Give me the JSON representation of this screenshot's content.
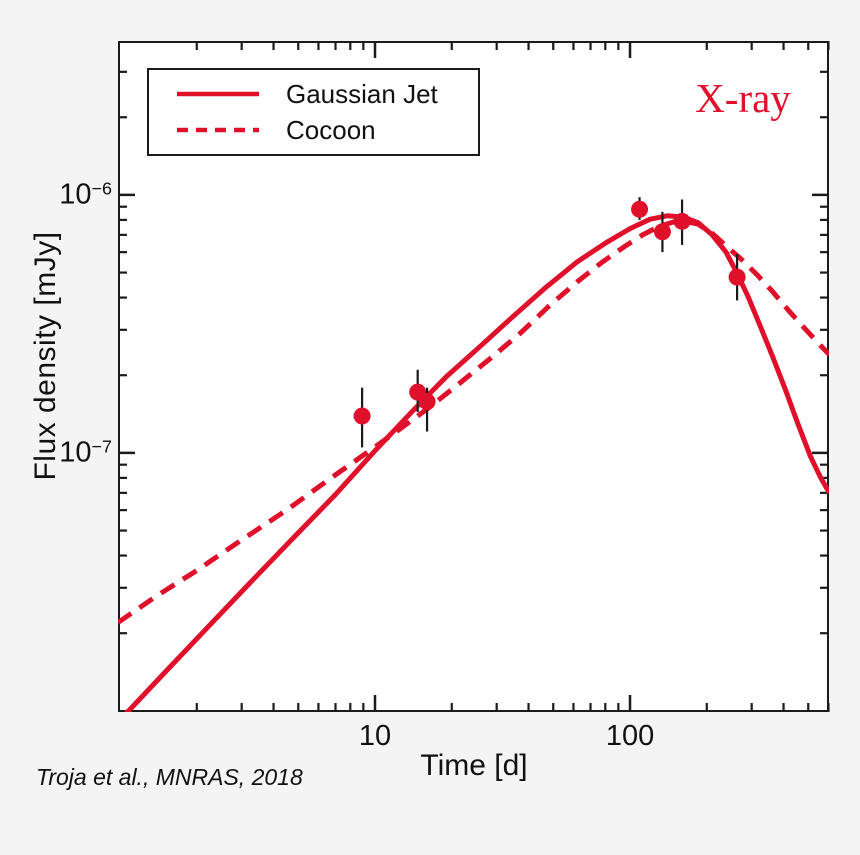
{
  "colors": {
    "accent": "#e0102a",
    "frame": "#1b1b1b",
    "text": "#111111",
    "background": "#f5f4f5",
    "plot_background": "#ffffff"
  },
  "legend": {
    "items": [
      {
        "label": "Gaussian Jet",
        "style": "solid"
      },
      {
        "label": "Cocoon",
        "style": "dashed"
      }
    ]
  },
  "annotation": {
    "label": "X-ray"
  },
  "attribution": {
    "text": "Troja et al., MNRAS, 2018"
  },
  "chart_data": {
    "type": "line",
    "title": "",
    "xlabel": "Time [d]",
    "ylabel": "Flux density [mJy]",
    "x_scale": "log",
    "y_scale": "log",
    "xlim": [
      0.982,
      603
    ],
    "ylim": [
      9.9e-09,
      3.95e-06
    ],
    "grid": false,
    "legend_position": "top-left",
    "x_tick_labels": [
      {
        "v": 10,
        "label": "10"
      },
      {
        "v": 100,
        "label": "100"
      }
    ],
    "y_tick_labels": [
      {
        "v": 1e-06,
        "base": "10",
        "exp": "−6"
      },
      {
        "v": 1e-07,
        "base": "10",
        "exp": "−7"
      }
    ],
    "x_ticks_major": [
      10,
      100
    ],
    "x_ticks_minor": [
      2,
      3,
      4,
      5,
      6,
      7,
      8,
      9,
      20,
      30,
      40,
      50,
      60,
      70,
      80,
      90,
      200,
      300,
      400,
      500,
      600
    ],
    "y_ticks_major": [
      1e-06,
      1e-07
    ],
    "y_ticks_minor": [
      2e-08,
      3e-08,
      4e-08,
      5e-08,
      6e-08,
      7e-08,
      8e-08,
      9e-08,
      2e-07,
      3e-07,
      4e-07,
      5e-07,
      6e-07,
      7e-07,
      8e-07,
      9e-07,
      2e-06,
      3e-06
    ],
    "series": [
      {
        "name": "Gaussian Jet",
        "style": "solid",
        "points": [
          [
            1.05,
            9.7e-09
          ],
          [
            1.5,
            1.41e-08
          ],
          [
            2.2,
            2.1e-08
          ],
          [
            3.2,
            3.1e-08
          ],
          [
            4.7,
            4.6e-08
          ],
          [
            7.0,
            6.9e-08
          ],
          [
            10,
            1.02e-07
          ],
          [
            14,
            1.45e-07
          ],
          [
            19,
            1.97e-07
          ],
          [
            26,
            2.6e-07
          ],
          [
            35,
            3.4e-07
          ],
          [
            47,
            4.4e-07
          ],
          [
            62,
            5.5e-07
          ],
          [
            80,
            6.5e-07
          ],
          [
            100,
            7.4e-07
          ],
          [
            120,
            8.05e-07
          ],
          [
            140,
            8.3e-07
          ],
          [
            162,
            8.2e-07
          ],
          [
            185,
            7.8e-07
          ],
          [
            210,
            7e-07
          ],
          [
            238,
            6e-07
          ],
          [
            262,
            5e-07
          ],
          [
            290,
            4.05e-07
          ],
          [
            320,
            3.2e-07
          ],
          [
            360,
            2.4e-07
          ],
          [
            405,
            1.78e-07
          ],
          [
            455,
            1.3e-07
          ],
          [
            510,
            9.7e-08
          ],
          [
            560,
            8e-08
          ],
          [
            605,
            7e-08
          ]
        ]
      },
      {
        "name": "Cocoon",
        "style": "dashed",
        "points": [
          [
            0.982,
            2.2e-08
          ],
          [
            1.4,
            2.8e-08
          ],
          [
            2.0,
            3.5e-08
          ],
          [
            3.0,
            4.6e-08
          ],
          [
            4.5,
            6e-08
          ],
          [
            6.5,
            7.8e-08
          ],
          [
            9.0,
            9.8e-08
          ],
          [
            12,
            1.2e-07
          ],
          [
            16,
            1.48e-07
          ],
          [
            21,
            1.83e-07
          ],
          [
            28,
            2.3e-07
          ],
          [
            37,
            2.9e-07
          ],
          [
            48,
            3.7e-07
          ],
          [
            62,
            4.6e-07
          ],
          [
            78,
            5.5e-07
          ],
          [
            95,
            6.3e-07
          ],
          [
            112,
            7e-07
          ],
          [
            130,
            7.55e-07
          ],
          [
            148,
            7.85e-07
          ],
          [
            165,
            7.9e-07
          ],
          [
            185,
            7.7e-07
          ],
          [
            210,
            7.1e-07
          ],
          [
            240,
            6.3e-07
          ],
          [
            275,
            5.6e-07
          ],
          [
            315,
            4.9e-07
          ],
          [
            360,
            4.25e-07
          ],
          [
            415,
            3.6e-07
          ],
          [
            475,
            3.1e-07
          ],
          [
            540,
            2.7e-07
          ],
          [
            605,
            2.4e-07
          ]
        ]
      }
    ],
    "data_points": {
      "name": "X-ray observations",
      "marker": "circle",
      "points": [
        {
          "t": 8.9,
          "f": 1.39e-07,
          "f_lo": 1.05e-07,
          "f_hi": 1.79e-07
        },
        {
          "t": 14.7,
          "f": 1.72e-07,
          "f_lo": 1.44e-07,
          "f_hi": 2.1e-07
        },
        {
          "t": 16.0,
          "f": 1.58e-07,
          "f_lo": 1.21e-07,
          "f_hi": 1.79e-07
        },
        {
          "t": 109,
          "f": 8.8e-07,
          "f_lo": 8e-07,
          "f_hi": 9.8e-07
        },
        {
          "t": 134,
          "f": 7.2e-07,
          "f_lo": 6e-07,
          "f_hi": 8.6e-07
        },
        {
          "t": 160,
          "f": 7.9e-07,
          "f_lo": 6.4e-07,
          "f_hi": 9.6e-07
        },
        {
          "t": 263,
          "f": 4.8e-07,
          "f_lo": 3.9e-07,
          "f_hi": 5.9e-07
        }
      ]
    }
  }
}
